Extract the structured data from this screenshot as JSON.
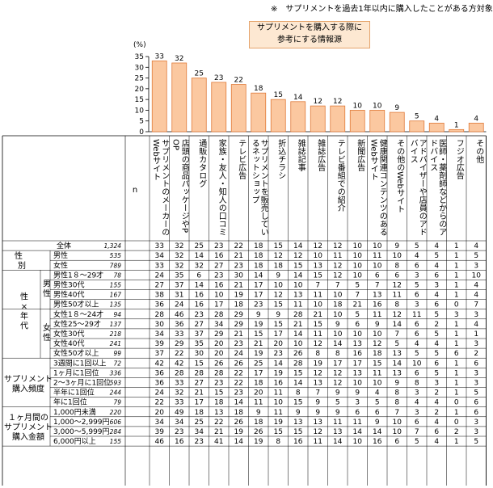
{
  "note": "※　サプリメントを過去1年以内に購入したことがある方対象",
  "legend": [
    "サプリメントを購入する際に",
    "参考にする情報源"
  ],
  "chart_data": {
    "type": "bar",
    "unit_label": "(%)",
    "ylim": [
      0,
      35
    ],
    "yticks": [
      0,
      5,
      10,
      15,
      20,
      25,
      30,
      35
    ],
    "categories": [
      "サプリメントのメーカーのWebサイト",
      "店頭の商品パッケージやPOP",
      "通販カタログ",
      "家族・友人・知人の口コミ",
      "テレビ広告",
      "サプリメントを販売しているネットショップ",
      "折込チラシ",
      "雑誌記事",
      "雑誌広告",
      "テレビ番組での紹介",
      "新聞広告",
      "健康関連コンテンツのあるWebサイト",
      "その他のWebサイト",
      "アドバイザーや店員のアドバイス",
      "医師・薬剤師などからのアドバイス",
      "フジオ広告",
      "その他"
    ],
    "values": [
      33,
      32,
      25,
      23,
      22,
      18,
      15,
      14,
      12,
      12,
      10,
      10,
      9,
      5,
      4,
      1,
      4
    ]
  },
  "table": {
    "n_header": "n",
    "groups": [
      {
        "label": "",
        "sub": "",
        "rows": [
          {
            "label": "全体",
            "n": "1,324",
            "v": [
              33,
              32,
              25,
              23,
              22,
              18,
              15,
              14,
              12,
              12,
              10,
              10,
              9,
              5,
              4,
              1,
              4
            ]
          }
        ]
      },
      {
        "label": "性別",
        "sub": "",
        "rows": [
          {
            "label": "男性",
            "n": "535",
            "v": [
              34,
              32,
              14,
              16,
              21,
              18,
              12,
              12,
              10,
              11,
              10,
              11,
              10,
              4,
              5,
              1,
              5
            ]
          },
          {
            "label": "女性",
            "n": "789",
            "v": [
              33,
              32,
              32,
              27,
              23,
              18,
              18,
              15,
              13,
              12,
              10,
              10,
              8,
              6,
              4,
              1,
              3
            ]
          }
        ]
      },
      {
        "label": "性×年代",
        "sub": "男性",
        "rows": [
          {
            "label": "男性1８～29才",
            "n": "78",
            "v": [
              24,
              35,
              6,
              23,
              30,
              14,
              9,
              14,
              15,
              12,
              10,
              6,
              6,
              3,
              6,
              1,
              10
            ]
          },
          {
            "label": "男性30代",
            "n": "155",
            "v": [
              27,
              37,
              14,
              16,
              21,
              17,
              10,
              10,
              7,
              7,
              5,
              7,
              12,
              5,
              3,
              1,
              4
            ]
          },
          {
            "label": "男性40代",
            "n": "167",
            "v": [
              38,
              31,
              16,
              10,
              19,
              17,
              12,
              13,
              11,
              10,
              7,
              13,
              11,
              6,
              4,
              1,
              4
            ]
          },
          {
            "label": "男性50才以上",
            "n": "135",
            "v": [
              36,
              24,
              16,
              17,
              18,
              23,
              15,
              11,
              10,
              18,
              21,
              16,
              8,
              3,
              6,
              0,
              7
            ]
          }
        ]
      },
      {
        "label": "",
        "sub": "女性",
        "rows": [
          {
            "label": "女性1８～24才",
            "n": "94",
            "v": [
              28,
              46,
              23,
              28,
              29,
              9,
              9,
              28,
              21,
              10,
              5,
              11,
              12,
              11,
              5,
              3,
              3
            ]
          },
          {
            "label": "女性25～29才",
            "n": "137",
            "v": [
              30,
              36,
              27,
              34,
              29,
              19,
              15,
              21,
              15,
              9,
              6,
              9,
              14,
              6,
              2,
              1,
              4
            ]
          },
          {
            "label": "女性30代",
            "n": "218",
            "v": [
              34,
              33,
              37,
              29,
              21,
              15,
              17,
              14,
              11,
              10,
              10,
              10,
              7,
              6,
              5,
              1,
              1
            ]
          },
          {
            "label": "女性40代",
            "n": "241",
            "v": [
              39,
              29,
              35,
              20,
              23,
              21,
              20,
              10,
              12,
              14,
              13,
              12,
              5,
              4,
              4,
              1,
              3
            ]
          },
          {
            "label": "女性50才以上",
            "n": "99",
            "v": [
              37,
              22,
              30,
              20,
              24,
              19,
              23,
              26,
              8,
              8,
              16,
              18,
              13,
              5,
              5,
              6,
              2
            ]
          }
        ]
      },
      {
        "label": "サプリメント購入頻度",
        "sub": "",
        "rows": [
          {
            "label": "3週間に1回以上",
            "n": "72",
            "v": [
              42,
              42,
              15,
              26,
              26,
              25,
              14,
              28,
              19,
              17,
              17,
              15,
              14,
              10,
              6,
              1,
              6
            ]
          },
          {
            "label": "1ヶ月に1回位",
            "n": "336",
            "v": [
              36,
              28,
              28,
              28,
              22,
              17,
              19,
              15,
              12,
              12,
              13,
              11,
              13,
              6,
              5,
              1,
              3
            ]
          },
          {
            "label": "2～3ヶ月に1回位",
            "n": "593",
            "v": [
              36,
              33,
              27,
              23,
              22,
              18,
              16,
              14,
              13,
              12,
              10,
              10,
              9,
              8,
              3,
              1,
              3
            ]
          },
          {
            "label": "半年に1回位",
            "n": "244",
            "v": [
              24,
              32,
              21,
              15,
              23,
              20,
              11,
              8,
              7,
              9,
              9,
              4,
              8,
              3,
              2,
              1,
              5
            ]
          },
          {
            "label": "年に1回位",
            "n": "79",
            "v": [
              22,
              33,
              17,
              18,
              14,
              11,
              10,
              15,
              9,
              5,
              3,
              5,
              8,
              4,
              4,
              0,
              6
            ]
          }
        ]
      },
      {
        "label": "１ヶ月間のサプリメント購入金額",
        "sub": "",
        "rows": [
          {
            "label": "1,000円未満",
            "n": "220",
            "v": [
              20,
              49,
              18,
              13,
              18,
              9,
              11,
              9,
              9,
              9,
              6,
              6,
              7,
              3,
              2,
              1,
              6
            ]
          },
          {
            "label": "1,000～2,999円",
            "n": "606",
            "v": [
              34,
              34,
              25,
              22,
              26,
              18,
              19,
              13,
              13,
              11,
              11,
              9,
              10,
              6,
              4,
              0,
              3
            ]
          },
          {
            "label": "3,000～5,999円",
            "n": "284",
            "v": [
              39,
              23,
              34,
              21,
              19,
              26,
              15,
              15,
              12,
              13,
              14,
              14,
              10,
              7,
              6,
              2,
              3
            ]
          },
          {
            "label": "6,000円以上",
            "n": "155",
            "v": [
              46,
              16,
              23,
              41,
              14,
              19,
              8,
              16,
              11,
              14,
              10,
              16,
              6,
              5,
              4,
              1,
              5
            ]
          }
        ]
      }
    ]
  },
  "colors": {
    "bar_fill": "#fbc8a0",
    "bar_stroke": "#e07a38",
    "legend_fill": "#fde8d2"
  }
}
